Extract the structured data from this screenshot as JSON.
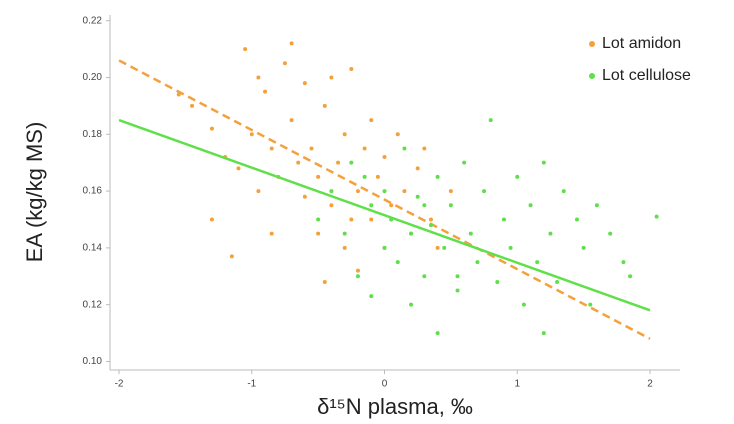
{
  "chart_data": {
    "type": "scatter",
    "x_label": "δ¹⁵N plasma, ‰",
    "y_label": "EA (kg/kg MS)",
    "xlim": [
      -2.068,
      2.226
    ],
    "ylim": [
      0.097,
      0.222
    ],
    "xticks": [
      -2,
      -1,
      0,
      1,
      2
    ],
    "yticks": [
      {
        "value": 0.1,
        "label": "0.10"
      },
      0.12,
      0.14,
      0.16,
      0.18,
      {
        "value": 0.2,
        "label": "0.20"
      },
      0.22
    ],
    "legend": "top-right",
    "series": [
      {
        "name": "Lot amidon",
        "color": "#f4a13c",
        "x": [
          -1.55,
          -1.45,
          -1.3,
          -1.2,
          -1.1,
          -1.05,
          -1.0,
          -0.95,
          -0.9,
          -0.85,
          -0.8,
          -0.75,
          -0.7,
          -0.7,
          -0.65,
          -0.6,
          -0.6,
          -0.55,
          -0.5,
          -0.5,
          -0.45,
          -0.4,
          -0.4,
          -0.35,
          -0.3,
          -0.3,
          -0.25,
          -0.2,
          -0.2,
          -0.15,
          -0.1,
          -0.1,
          -0.05,
          0.0,
          0.05,
          0.1,
          0.15,
          0.2,
          0.25,
          0.3,
          0.35,
          0.4,
          -1.15,
          -0.85,
          -0.45,
          0.5,
          0.0,
          -0.25,
          -1.3,
          -0.95
        ],
        "values": [
          0.194,
          0.19,
          0.182,
          0.172,
          0.168,
          0.21,
          0.18,
          0.16,
          0.195,
          0.175,
          0.165,
          0.205,
          0.212,
          0.185,
          0.17,
          0.158,
          0.198,
          0.175,
          0.165,
          0.145,
          0.19,
          0.2,
          0.155,
          0.17,
          0.14,
          0.18,
          0.203,
          0.16,
          0.132,
          0.175,
          0.15,
          0.185,
          0.165,
          0.172,
          0.155,
          0.18,
          0.16,
          0.145,
          0.168,
          0.175,
          0.15,
          0.14,
          0.137,
          0.145,
          0.128,
          0.16,
          0.14,
          0.15,
          0.15,
          0.2
        ],
        "fit": {
          "x": [
            -2,
            2
          ],
          "values": [
            0.206,
            0.108
          ],
          "dash": true
        }
      },
      {
        "name": "Lot cellulose",
        "color": "#5fe04a",
        "x": [
          -0.5,
          -0.4,
          -0.3,
          -0.25,
          -0.2,
          -0.1,
          -0.1,
          0.0,
          0.0,
          0.05,
          0.1,
          0.15,
          0.2,
          0.2,
          0.25,
          0.3,
          0.35,
          0.4,
          0.4,
          0.45,
          0.5,
          0.55,
          0.6,
          0.65,
          0.7,
          0.75,
          0.8,
          0.85,
          0.9,
          0.95,
          1.0,
          1.05,
          1.1,
          1.15,
          1.2,
          1.25,
          1.3,
          1.35,
          1.45,
          1.5,
          1.55,
          1.6,
          1.7,
          1.8,
          1.85,
          2.05,
          1.2,
          0.55,
          -0.15,
          0.3
        ],
        "values": [
          0.15,
          0.16,
          0.145,
          0.17,
          0.13,
          0.155,
          0.123,
          0.14,
          0.16,
          0.15,
          0.135,
          0.175,
          0.145,
          0.12,
          0.158,
          0.13,
          0.148,
          0.165,
          0.11,
          0.14,
          0.155,
          0.125,
          0.17,
          0.145,
          0.135,
          0.16,
          0.185,
          0.128,
          0.15,
          0.14,
          0.165,
          0.12,
          0.155,
          0.135,
          0.17,
          0.145,
          0.128,
          0.16,
          0.15,
          0.14,
          0.12,
          0.155,
          0.145,
          0.135,
          0.13,
          0.151,
          0.11,
          0.13,
          0.165,
          0.155
        ],
        "fit": {
          "x": [
            -2,
            2
          ],
          "values": [
            0.185,
            0.118
          ],
          "dash": false
        }
      }
    ]
  }
}
